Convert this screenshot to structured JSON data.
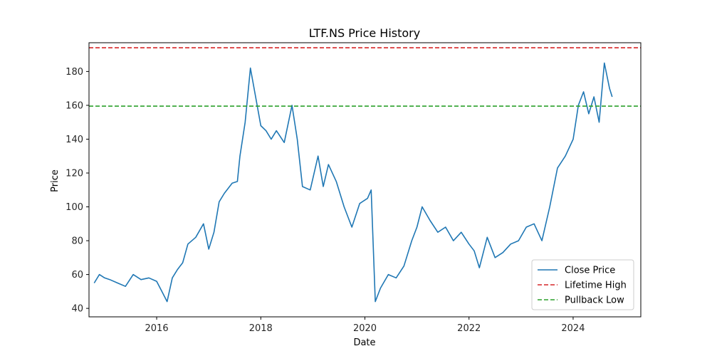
{
  "chart_data": {
    "type": "line",
    "title": "LTF.NS Price History",
    "xlabel": "Date",
    "ylabel": "Price",
    "xlim": [
      2014.7,
      2025.3
    ],
    "ylim": [
      35,
      197
    ],
    "x_ticks": [
      2016,
      2018,
      2020,
      2022,
      2024
    ],
    "x_tick_labels": [
      "2016",
      "2018",
      "2020",
      "2022",
      "2024"
    ],
    "y_ticks": [
      40,
      60,
      80,
      100,
      120,
      140,
      160,
      180
    ],
    "y_tick_labels": [
      "40",
      "60",
      "80",
      "100",
      "120",
      "140",
      "160",
      "180"
    ],
    "grid": false,
    "legend_position": "lower-right",
    "series": [
      {
        "name": "Close Price",
        "color": "#1f77b4",
        "style": "solid",
        "x": [
          2014.8,
          2014.9,
          2015.0,
          2015.1,
          2015.25,
          2015.4,
          2015.55,
          2015.7,
          2015.85,
          2016.0,
          2016.1,
          2016.2,
          2016.3,
          2016.4,
          2016.5,
          2016.6,
          2016.75,
          2016.9,
          2017.0,
          2017.1,
          2017.2,
          2017.3,
          2017.45,
          2017.55,
          2017.6,
          2017.7,
          2017.8,
          2017.9,
          2018.0,
          2018.1,
          2018.2,
          2018.3,
          2018.45,
          2018.6,
          2018.7,
          2018.8,
          2018.95,
          2019.1,
          2019.2,
          2019.3,
          2019.45,
          2019.6,
          2019.75,
          2019.9,
          2020.05,
          2020.12,
          2020.2,
          2020.3,
          2020.45,
          2020.6,
          2020.75,
          2020.9,
          2021.0,
          2021.1,
          2021.25,
          2021.4,
          2021.55,
          2021.7,
          2021.85,
          2022.0,
          2022.1,
          2022.2,
          2022.35,
          2022.5,
          2022.65,
          2022.8,
          2022.95,
          2023.1,
          2023.25,
          2023.4,
          2023.55,
          2023.7,
          2023.85,
          2024.0,
          2024.1,
          2024.2,
          2024.3,
          2024.4,
          2024.5,
          2024.6,
          2024.7,
          2024.75
        ],
        "y": [
          55,
          60,
          58,
          57,
          55,
          53,
          60,
          57,
          58,
          56,
          50,
          44,
          58,
          63,
          67,
          78,
          82,
          90,
          75,
          85,
          103,
          108,
          114,
          115,
          130,
          150,
          182,
          165,
          148,
          145,
          140,
          145,
          138,
          160,
          140,
          112,
          110,
          130,
          112,
          125,
          115,
          100,
          88,
          102,
          105,
          110,
          44,
          52,
          60,
          58,
          65,
          80,
          88,
          100,
          92,
          85,
          88,
          80,
          85,
          78,
          74,
          64,
          82,
          70,
          73,
          78,
          80,
          88,
          90,
          80,
          100,
          123,
          130,
          140,
          160,
          168,
          155,
          165,
          150,
          185,
          170,
          165
        ]
      },
      {
        "name": "Lifetime High",
        "color": "#d62728",
        "style": "dashed",
        "x": [
          2014.7,
          2025.3
        ],
        "y": [
          194,
          194
        ]
      },
      {
        "name": "Pullback Low",
        "color": "#2ca02c",
        "style": "dashed",
        "x": [
          2014.7,
          2025.3
        ],
        "y": [
          159.5,
          159.5
        ]
      }
    ]
  }
}
